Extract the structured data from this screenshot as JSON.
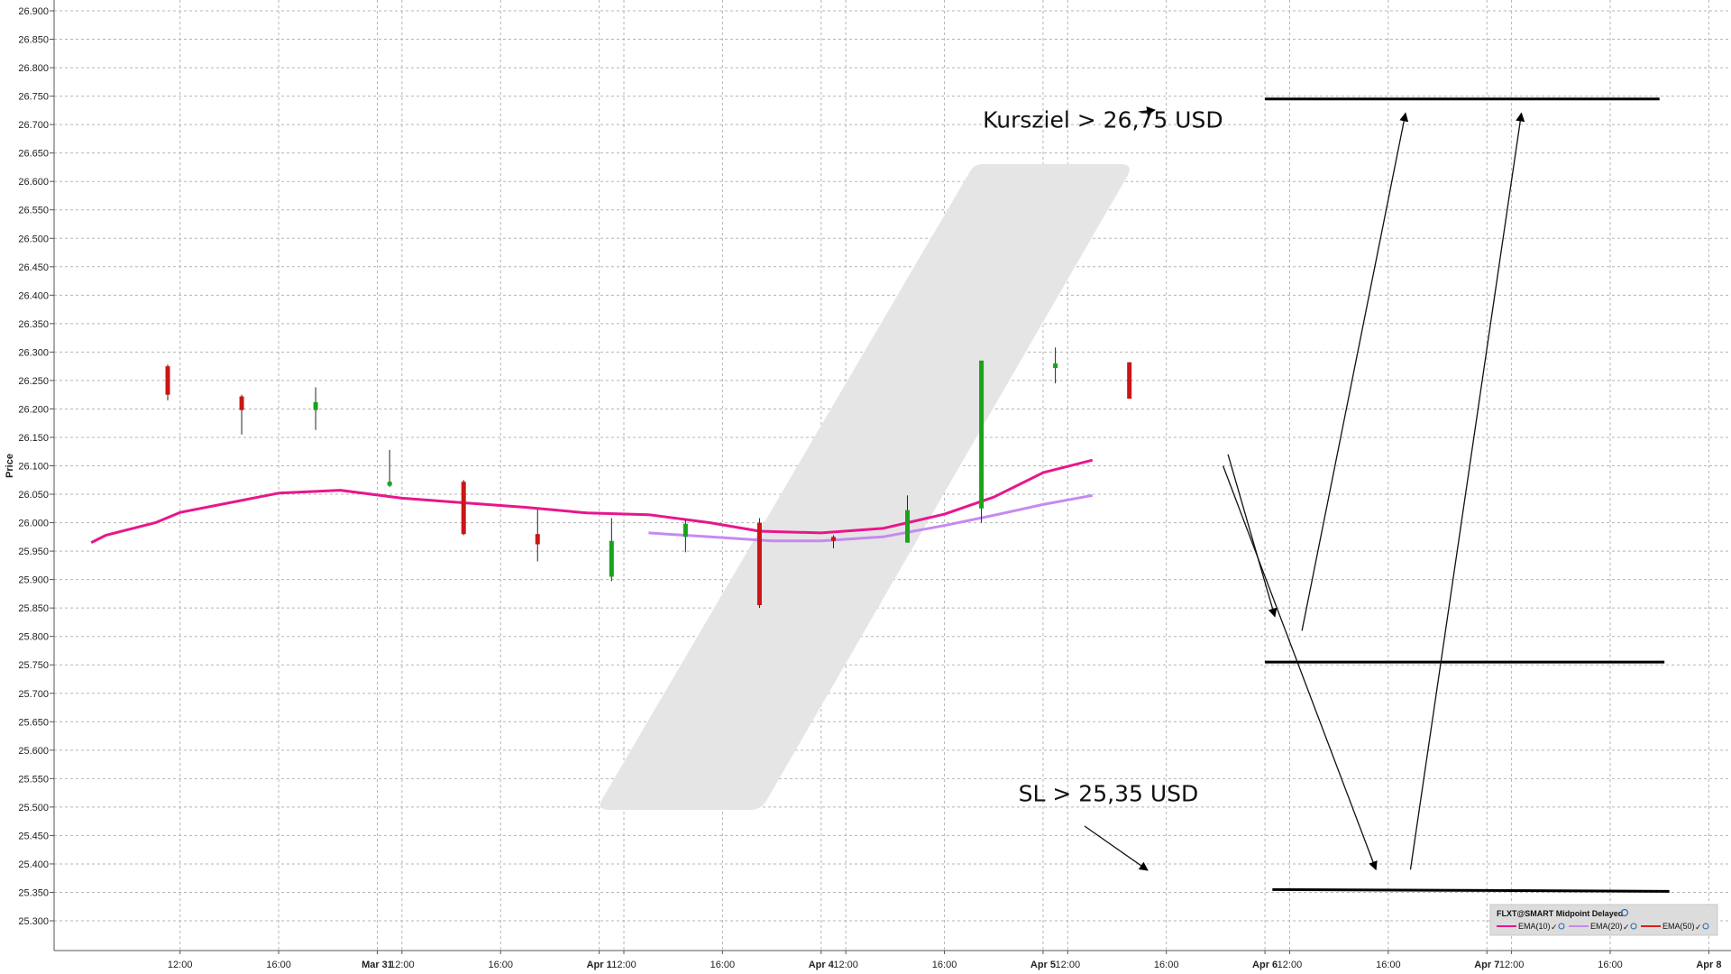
{
  "chart_data": {
    "type": "candlestick",
    "ylabel": "Price",
    "ylim": [
      25.28,
      26.91
    ],
    "yticks": [
      "26.900",
      "26.850",
      "26.800",
      "26.750",
      "26.700",
      "26.650",
      "26.600",
      "26.550",
      "26.500",
      "26.450",
      "26.400",
      "26.350",
      "26.300",
      "26.250",
      "26.200",
      "26.150",
      "26.100",
      "26.050",
      "26.000",
      "25.950",
      "25.900",
      "25.850",
      "25.800",
      "25.750",
      "25.700",
      "25.650",
      "25.600",
      "25.550",
      "25.500",
      "25.450",
      "25.400",
      "25.350",
      "25.300"
    ],
    "xticks": [
      {
        "label": "12:00",
        "bold": false,
        "t": 2
      },
      {
        "label": "16:00",
        "bold": false,
        "t": 6
      },
      {
        "label": "Mar 31",
        "bold": true,
        "t": 10
      },
      {
        "label": "12:00",
        "bold": false,
        "t": 11
      },
      {
        "label": "16:00",
        "bold": false,
        "t": 15
      },
      {
        "label": "Apr 1",
        "bold": true,
        "t": 19
      },
      {
        "label": "12:00",
        "bold": false,
        "t": 20
      },
      {
        "label": "16:00",
        "bold": false,
        "t": 24
      },
      {
        "label": "Apr 4",
        "bold": true,
        "t": 28
      },
      {
        "label": "12:00",
        "bold": false,
        "t": 29
      },
      {
        "label": "16:00",
        "bold": false,
        "t": 33
      },
      {
        "label": "Apr 5",
        "bold": true,
        "t": 37
      },
      {
        "label": "12:00",
        "bold": false,
        "t": 38
      },
      {
        "label": "16:00",
        "bold": false,
        "t": 42
      },
      {
        "label": "Apr 6",
        "bold": true,
        "t": 46
      },
      {
        "label": "12:00",
        "bold": false,
        "t": 47
      },
      {
        "label": "16:00",
        "bold": false,
        "t": 51
      },
      {
        "label": "Apr 7",
        "bold": true,
        "t": 55
      },
      {
        "label": "12:00",
        "bold": false,
        "t": 56
      },
      {
        "label": "16:00",
        "bold": false,
        "t": 60
      },
      {
        "label": "Apr 8",
        "bold": true,
        "t": 64
      },
      {
        "label": "12:00",
        "bold": false,
        "t": 65
      }
    ],
    "candles": [
      {
        "t": 1.5,
        "open": 26.275,
        "high": 26.278,
        "low": 26.215,
        "close": 26.225
      },
      {
        "t": 4.5,
        "open": 26.222,
        "high": 26.225,
        "low": 26.155,
        "close": 26.198
      },
      {
        "t": 7.5,
        "open": 26.198,
        "high": 26.238,
        "low": 26.163,
        "close": 26.212
      },
      {
        "t": 10.5,
        "open": 26.065,
        "high": 26.128,
        "low": 26.063,
        "close": 26.072
      },
      {
        "t": 13.5,
        "open": 26.072,
        "high": 26.075,
        "low": 25.978,
        "close": 25.98
      },
      {
        "t": 16.5,
        "open": 25.98,
        "high": 26.023,
        "low": 25.932,
        "close": 25.962
      },
      {
        "t": 19.5,
        "open": 25.905,
        "high": 26.008,
        "low": 25.897,
        "close": 25.968
      },
      {
        "t": 22.5,
        "open": 25.975,
        "high": 26.005,
        "low": 25.948,
        "close": 25.998
      },
      {
        "t": 25.5,
        "open": 26.0,
        "high": 26.008,
        "low": 25.85,
        "close": 25.855
      },
      {
        "t": 28.5,
        "open": 25.975,
        "high": 25.978,
        "low": 25.955,
        "close": 25.968
      },
      {
        "t": 31.5,
        "open": 25.965,
        "high": 26.048,
        "low": 25.965,
        "close": 26.022
      },
      {
        "t": 34.5,
        "open": 26.025,
        "high": 26.285,
        "low": 26.0,
        "close": 26.285
      },
      {
        "t": 37.5,
        "open": 26.272,
        "high": 26.308,
        "low": 26.245,
        "close": 26.28
      },
      {
        "t": 40.5,
        "open": 26.282,
        "high": 26.282,
        "low": 26.218,
        "close": 26.218
      }
    ],
    "series": [
      {
        "name": "EMA(10)",
        "color": "#e8168c",
        "points": [
          [
            -1.6,
            25.965
          ],
          [
            -1,
            25.978
          ],
          [
            1,
            26.0
          ],
          [
            2,
            26.018
          ],
          [
            4,
            26.035
          ],
          [
            6,
            26.052
          ],
          [
            8.5,
            26.057
          ],
          [
            11,
            26.043
          ],
          [
            13.5,
            26.035
          ],
          [
            16,
            26.027
          ],
          [
            18.5,
            26.017
          ],
          [
            21,
            26.014
          ],
          [
            23.5,
            26.0
          ],
          [
            25.5,
            25.985
          ],
          [
            28,
            25.982
          ],
          [
            30.5,
            25.99
          ],
          [
            33,
            26.015
          ],
          [
            35,
            26.045
          ],
          [
            37,
            26.088
          ],
          [
            39,
            26.11
          ]
        ]
      },
      {
        "name": "EMA(20)",
        "color": "#c58af0",
        "points": [
          [
            21,
            25.982
          ],
          [
            23.5,
            25.975
          ],
          [
            26,
            25.968
          ],
          [
            28,
            25.968
          ],
          [
            30.5,
            25.975
          ],
          [
            33,
            25.995
          ],
          [
            35,
            26.013
          ],
          [
            37,
            26.032
          ],
          [
            39,
            26.048
          ]
        ]
      },
      {
        "name": "EMA(50)",
        "color": "#d61f1f",
        "points": []
      }
    ],
    "levels": [
      {
        "name": "target",
        "value": 26.745,
        "t1": 46.0,
        "t2": 62.0
      },
      {
        "name": "mid",
        "value": 25.755,
        "t1": 46.0,
        "t2": 62.2
      },
      {
        "name": "stop",
        "value": 25.355,
        "t1": 46.3,
        "t2": 62.4
      }
    ],
    "annotations": [
      {
        "text": "Kursziel > 26,75 USD",
        "t": 44.3,
        "y": 26.695,
        "anchor": "end"
      },
      {
        "text": "SL > 25,35 USD",
        "t": 43.3,
        "y": 25.51,
        "anchor": "end"
      }
    ],
    "legend_title": "FLXT@SMART Midpoint Delayed",
    "grid": true,
    "legend_position": "bottom-right"
  }
}
